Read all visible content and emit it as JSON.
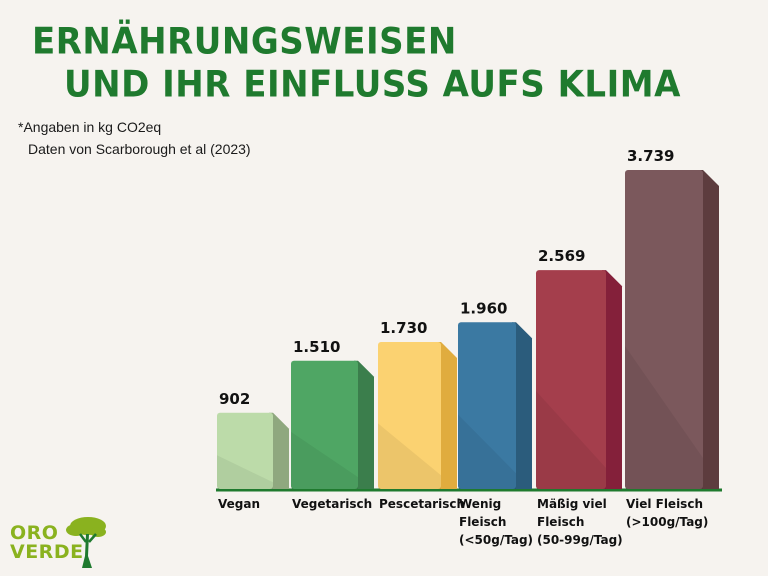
{
  "title": {
    "line1": "ERNÄHRUNGSWEISEN",
    "line2": "UND IHR EINFLUSS AUFS KLIMA"
  },
  "note": {
    "line1": "*Angaben in kg CO2eq",
    "line2": "Daten von Scarborough et al (2023)"
  },
  "logo": {
    "line1": "ORO",
    "line2": "VERDE"
  },
  "colors": {
    "title": "#1f7a2e",
    "axis": "#1f7a2e",
    "background": "#f6f3ef",
    "logo": "#8ab21f"
  },
  "chart_data": {
    "type": "bar",
    "categories": [
      [
        "Vegan"
      ],
      [
        "Vegetarisch"
      ],
      [
        "Pescetarisch"
      ],
      [
        "Wenig",
        "Fleisch",
        "(<50g/Tag)"
      ],
      [
        "Mäßig viel",
        "Fleisch",
        "(50-99g/Tag)"
      ],
      [
        "Viel Fleisch",
        "(>100g/Tag)"
      ]
    ],
    "values": [
      902,
      1510,
      1730,
      1960,
      2569,
      3739
    ],
    "value_labels": [
      "902",
      "1.510",
      "1.730",
      "1.960",
      "2.569",
      "3.739"
    ],
    "colors": [
      {
        "front": "#bcdba9",
        "side": "#8fa87f"
      },
      {
        "front": "#4fa664",
        "side": "#3b7e4c"
      },
      {
        "front": "#fbd271",
        "side": "#e0ac3e"
      },
      {
        "front": "#3b79a2",
        "side": "#2b5c7c"
      },
      {
        "front": "#a43e4c",
        "side": "#84203a"
      },
      {
        "front": "#7b585c",
        "side": "#5d3c3e"
      }
    ],
    "ylim": [
      0,
      3739
    ],
    "grid": false,
    "legend": "none"
  }
}
